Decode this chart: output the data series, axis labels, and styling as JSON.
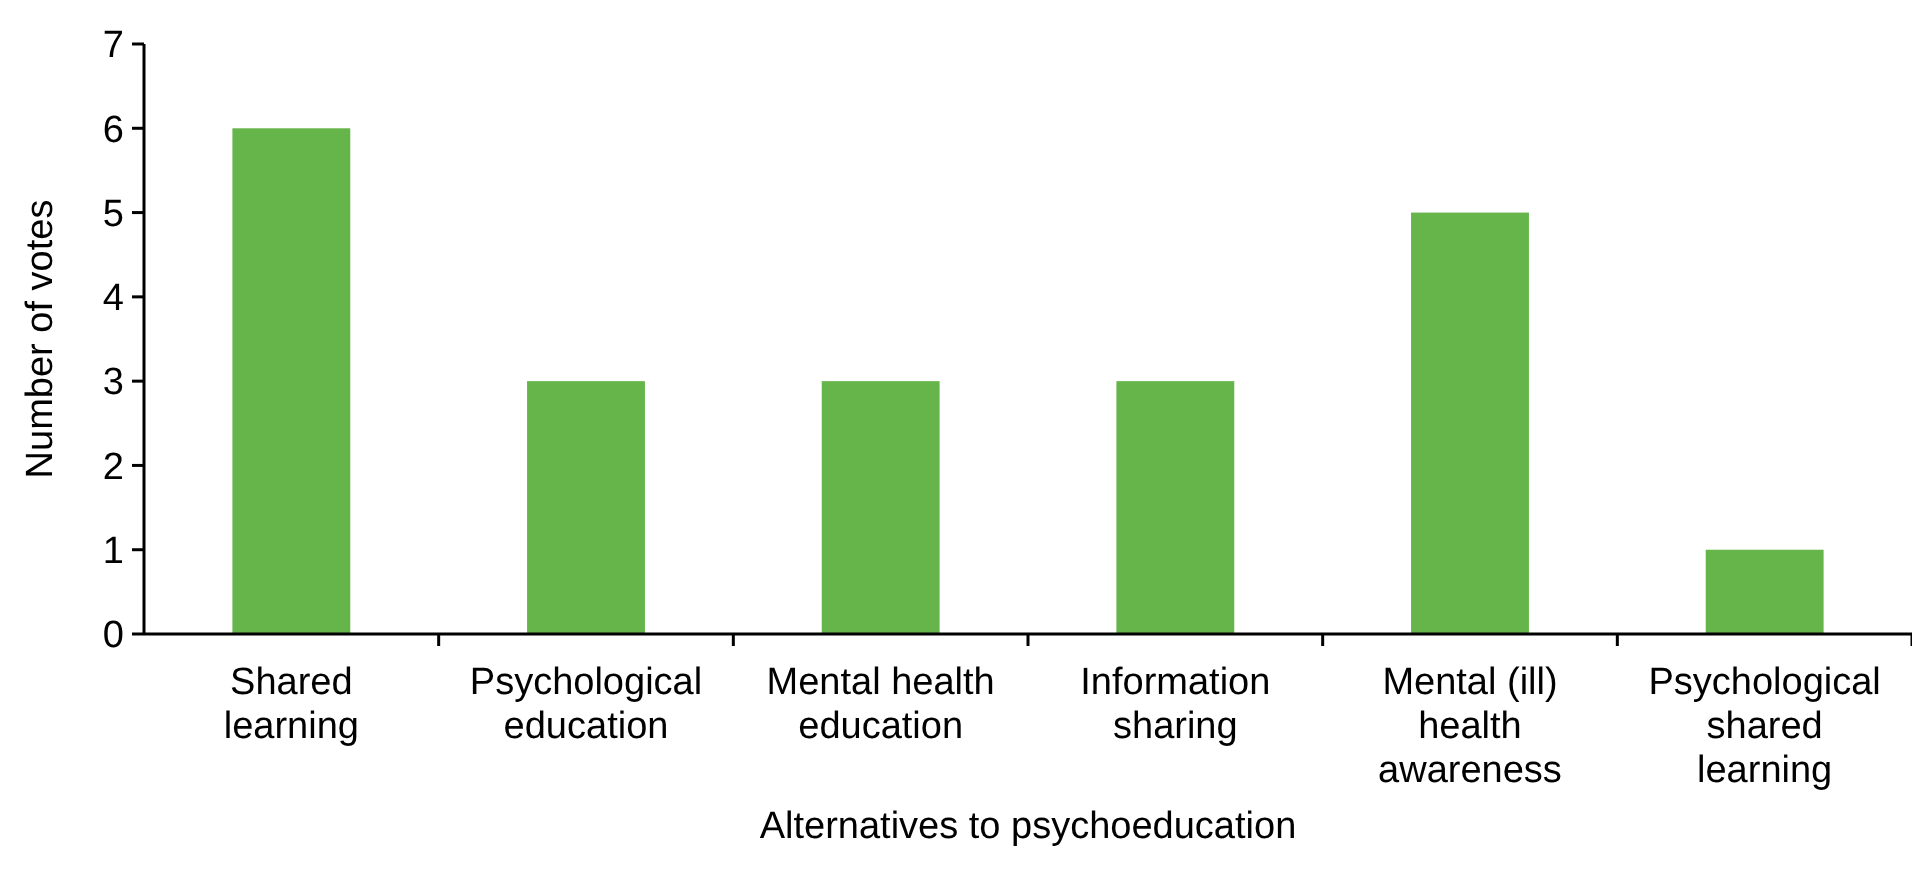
{
  "chart_data": {
    "type": "bar",
    "xlabel": "Alternatives to psychoeducation",
    "ylabel": "Number of votes",
    "categories": [
      "Shared learning",
      "Psychological education",
      "Mental health education",
      "Information sharing",
      "Mental (ill) health awareness",
      "Psychological shared learning"
    ],
    "values": [
      6,
      3,
      3,
      3,
      5,
      1
    ],
    "color": "#66b54a",
    "ylim": [
      0,
      7
    ],
    "yticks": [
      0,
      1,
      2,
      3,
      4,
      5,
      6,
      7
    ],
    "grid": false
  }
}
